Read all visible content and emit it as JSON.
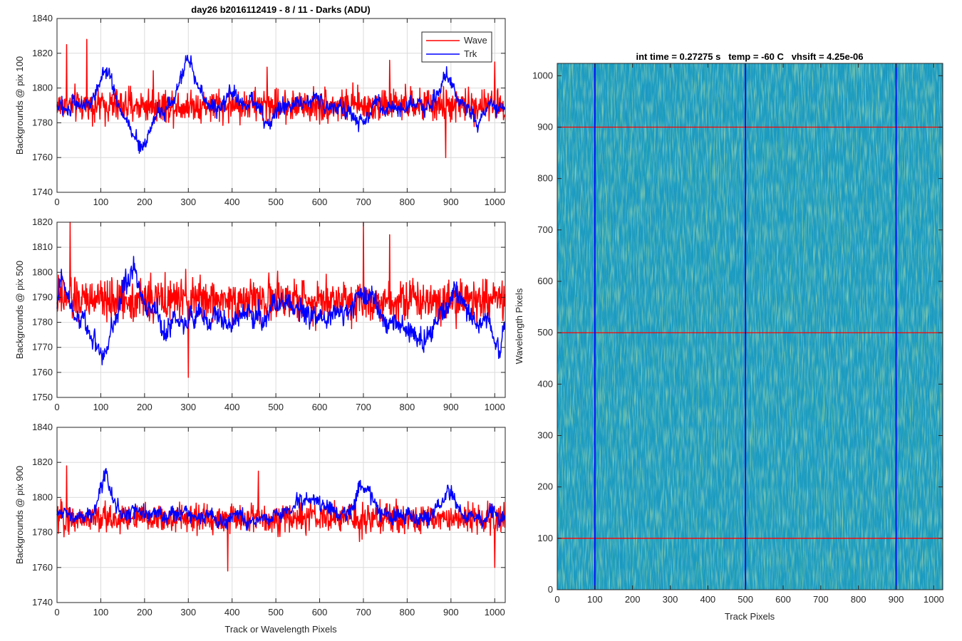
{
  "figure_title": "day26 b2016112419 - 8 / 11 - Darks (ADU)",
  "chart_data": [
    {
      "type": "line",
      "title": "day26 b2016112419 - 8 / 11 - Darks (ADU)",
      "xlabel": "",
      "ylabel": "Backgrounds @ pix 100",
      "xlim": [
        0,
        1024
      ],
      "ylim": [
        1740,
        1840
      ],
      "xticks": [
        0,
        100,
        200,
        300,
        400,
        500,
        600,
        700,
        800,
        900,
        1000
      ],
      "yticks": [
        1740,
        1760,
        1780,
        1800,
        1820,
        1840
      ],
      "grid": true,
      "legend": "top-right",
      "series": [
        {
          "name": "Wave",
          "color": "#ff0000",
          "mean": 1790,
          "noise": 9,
          "spikes": [
            {
              "x": 22,
              "y": 1825
            },
            {
              "x": 68,
              "y": 1828
            },
            {
              "x": 220,
              "y": 1810
            },
            {
              "x": 480,
              "y": 1812
            },
            {
              "x": 760,
              "y": 1816
            },
            {
              "x": 888,
              "y": 1760
            },
            {
              "x": 1000,
              "y": 1815
            }
          ]
        },
        {
          "name": "Trk",
          "color": "#0000ff",
          "mean": 1790,
          "noise": 6,
          "features": [
            {
              "x": 110,
              "dy": 22,
              "w": 20
            },
            {
              "x": 190,
              "dy": -25,
              "w": 30
            },
            {
              "x": 300,
              "dy": 25,
              "w": 25
            },
            {
              "x": 400,
              "dy": 12,
              "w": 15
            },
            {
              "x": 480,
              "dy": -12,
              "w": 15
            },
            {
              "x": 690,
              "dy": -10,
              "w": 25
            },
            {
              "x": 890,
              "dy": 18,
              "w": 20
            },
            {
              "x": 960,
              "dy": -8,
              "w": 20
            }
          ]
        }
      ]
    },
    {
      "type": "line",
      "title": "",
      "xlabel": "",
      "ylabel": "Backgrounds @ pix 500",
      "xlim": [
        0,
        1024
      ],
      "ylim": [
        1750,
        1820
      ],
      "xticks": [
        0,
        100,
        200,
        300,
        400,
        500,
        600,
        700,
        800,
        900,
        1000
      ],
      "yticks": [
        1750,
        1760,
        1770,
        1780,
        1790,
        1800,
        1810,
        1820
      ],
      "grid": true,
      "series": [
        {
          "name": "",
          "color": "#ff0000",
          "mean": 1789,
          "noise": 8,
          "spikes": [
            {
              "x": 30,
              "y": 1820
            },
            {
              "x": 300,
              "y": 1758
            },
            {
              "x": 700,
              "y": 1820
            },
            {
              "x": 760,
              "y": 1815
            }
          ]
        },
        {
          "name": "",
          "color": "#0000ff",
          "mean": 1782,
          "noise": 6,
          "features": [
            {
              "x": 15,
              "dy": 18,
              "w": 15
            },
            {
              "x": 100,
              "dy": -12,
              "w": 30
            },
            {
              "x": 170,
              "dy": 18,
              "w": 30
            },
            {
              "x": 270,
              "dy": -5,
              "w": 30
            },
            {
              "x": 520,
              "dy": 8,
              "w": 25
            },
            {
              "x": 700,
              "dy": 10,
              "w": 30
            },
            {
              "x": 830,
              "dy": -12,
              "w": 25
            },
            {
              "x": 910,
              "dy": 10,
              "w": 25
            },
            {
              "x": 1010,
              "dy": -12,
              "w": 15
            }
          ]
        }
      ]
    },
    {
      "type": "line",
      "title": "",
      "xlabel": "Track or Wavelength Pixels",
      "ylabel": "Backgrounds @ pix 900",
      "xlim": [
        0,
        1024
      ],
      "ylim": [
        1740,
        1840
      ],
      "xticks": [
        0,
        100,
        200,
        300,
        400,
        500,
        600,
        700,
        800,
        900,
        1000
      ],
      "yticks": [
        1740,
        1760,
        1780,
        1800,
        1820,
        1840
      ],
      "grid": true,
      "series": [
        {
          "name": "",
          "color": "#ff0000",
          "mean": 1788,
          "noise": 8,
          "spikes": [
            {
              "x": 22,
              "y": 1818
            },
            {
              "x": 390,
              "y": 1758
            },
            {
              "x": 1000,
              "y": 1760
            },
            {
              "x": 460,
              "y": 1815
            }
          ]
        },
        {
          "name": "",
          "color": "#0000ff",
          "mean": 1789,
          "noise": 6,
          "features": [
            {
              "x": 110,
              "dy": 25,
              "w": 18
            },
            {
              "x": 580,
              "dy": 12,
              "w": 40
            },
            {
              "x": 700,
              "dy": 14,
              "w": 30
            },
            {
              "x": 900,
              "dy": 14,
              "w": 25
            },
            {
              "x": 380,
              "dy": -6,
              "w": 20
            }
          ]
        }
      ]
    },
    {
      "type": "heatmap",
      "title": "int time = 0.27275 s   temp = -60 C   vhsift = 4.25e-06",
      "xlabel": "Track Pixels",
      "ylabel": "Wavelength Pixels",
      "xlim": [
        0,
        1024
      ],
      "ylim": [
        0,
        1024
      ],
      "xticks": [
        0,
        100,
        200,
        300,
        400,
        500,
        600,
        700,
        800,
        900,
        1000
      ],
      "yticks": [
        0,
        100,
        200,
        300,
        400,
        500,
        600,
        700,
        800,
        900,
        1000
      ],
      "colormap": [
        "#1e88c8",
        "#1ca0b8",
        "#33b39a",
        "#8cc870"
      ],
      "hlines": [
        {
          "y": 100,
          "color": "#ff0000"
        },
        {
          "y": 500,
          "color": "#ff0000"
        },
        {
          "y": 900,
          "color": "#ff0000"
        }
      ],
      "vlines": [
        {
          "x": 100,
          "color": "#0000ff"
        },
        {
          "x": 500,
          "color": "#0000ff"
        },
        {
          "x": 900,
          "color": "#0000ff"
        }
      ]
    }
  ]
}
